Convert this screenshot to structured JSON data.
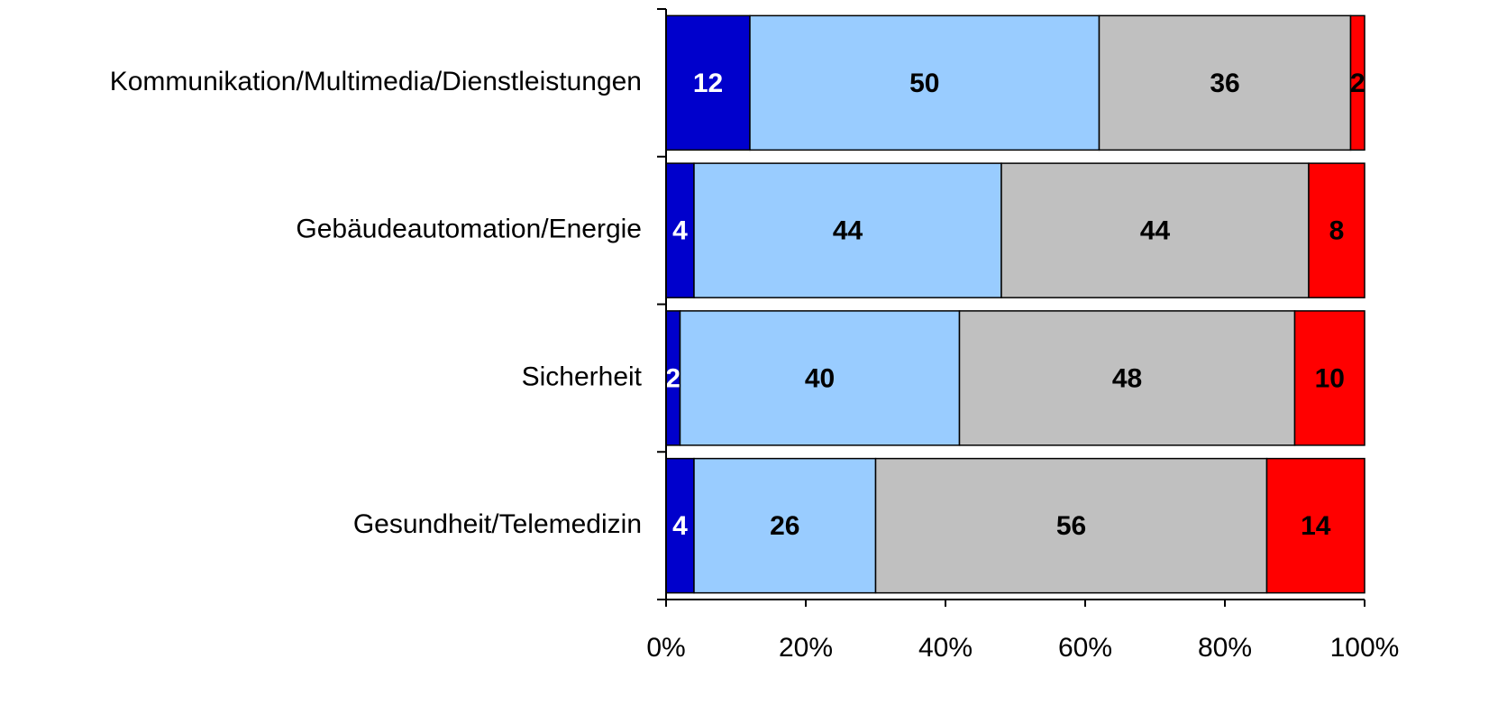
{
  "chart_data": {
    "type": "stacked_barh",
    "categories": [
      "Kommunikation/Multimedia/Dienstleistungen",
      "Gebäudeautomation/Energie",
      "Sicherheit",
      "Gesundheit/Telemedizin"
    ],
    "series": [
      {
        "color": "#0000cc",
        "label_color": "#ffffff",
        "values": [
          12,
          4,
          2,
          4
        ]
      },
      {
        "color": "#99ccff",
        "label_color": "#000000",
        "values": [
          50,
          44,
          40,
          26
        ]
      },
      {
        "color": "#c0c0c0",
        "label_color": "#000000",
        "values": [
          36,
          44,
          48,
          56
        ]
      },
      {
        "color": "#ff0000",
        "label_color": "#000000",
        "values": [
          2,
          8,
          10,
          14
        ]
      }
    ],
    "xlim": [
      0,
      100
    ],
    "xticks": [
      {
        "value": 0,
        "label": "0%"
      },
      {
        "value": 20,
        "label": "20%"
      },
      {
        "value": 40,
        "label": "40%"
      },
      {
        "value": 60,
        "label": "60%"
      },
      {
        "value": 80,
        "label": "80%"
      },
      {
        "value": 100,
        "label": "100%"
      }
    ]
  }
}
